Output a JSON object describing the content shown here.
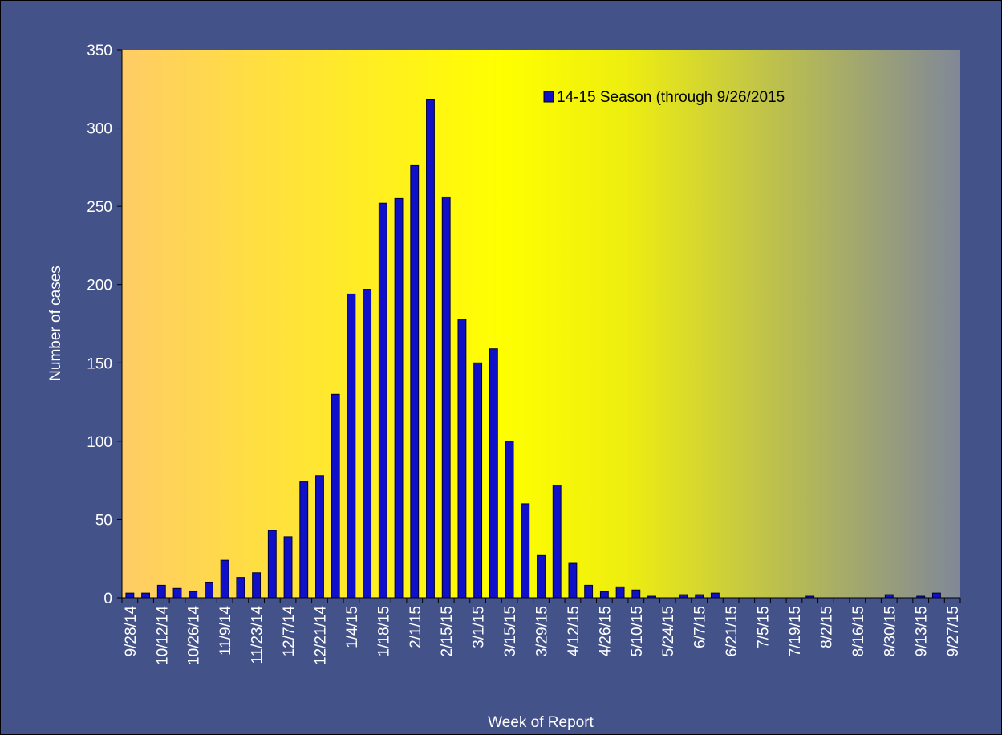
{
  "chart_data": {
    "type": "bar",
    "x_label": "Week of Report",
    "y_label": "Number of cases",
    "categories": [
      "9/28/14",
      null,
      "10/12/14",
      null,
      "10/26/14",
      null,
      "11/9/14",
      null,
      "11/23/14",
      null,
      "12/7/14",
      null,
      "12/21/14",
      null,
      "1/4/15",
      null,
      "1/18/15",
      null,
      "2/1/15",
      null,
      "2/15/15",
      null,
      "3/1/15",
      null,
      "3/15/15",
      null,
      "3/29/15",
      null,
      "4/12/15",
      null,
      "4/26/15",
      null,
      "5/10/15",
      null,
      "5/24/15",
      null,
      "6/7/15",
      null,
      "6/21/15",
      null,
      "7/5/15",
      null,
      "7/19/15",
      null,
      "8/2/15",
      null,
      "8/16/15",
      null,
      "8/30/15",
      null,
      "9/13/15",
      null,
      "9/27/15"
    ],
    "series": [
      {
        "name": "14-15 Season (through 9/26/2015",
        "color": "#1010c8",
        "values": [
          3,
          3,
          8,
          6,
          4,
          10,
          24,
          13,
          16,
          43,
          39,
          74,
          78,
          130,
          194,
          197,
          252,
          255,
          276,
          318,
          256,
          178,
          150,
          159,
          100,
          60,
          27,
          72,
          22,
          8,
          4,
          7,
          5,
          1,
          0,
          2,
          2,
          3,
          0,
          0,
          0,
          0,
          0,
          1,
          0,
          0,
          0,
          0,
          2,
          0,
          1,
          3,
          0
        ]
      }
    ],
    "ylim": [
      0,
      350
    ],
    "yticks": [
      0,
      50,
      100,
      150,
      200,
      250,
      300,
      350
    ]
  }
}
